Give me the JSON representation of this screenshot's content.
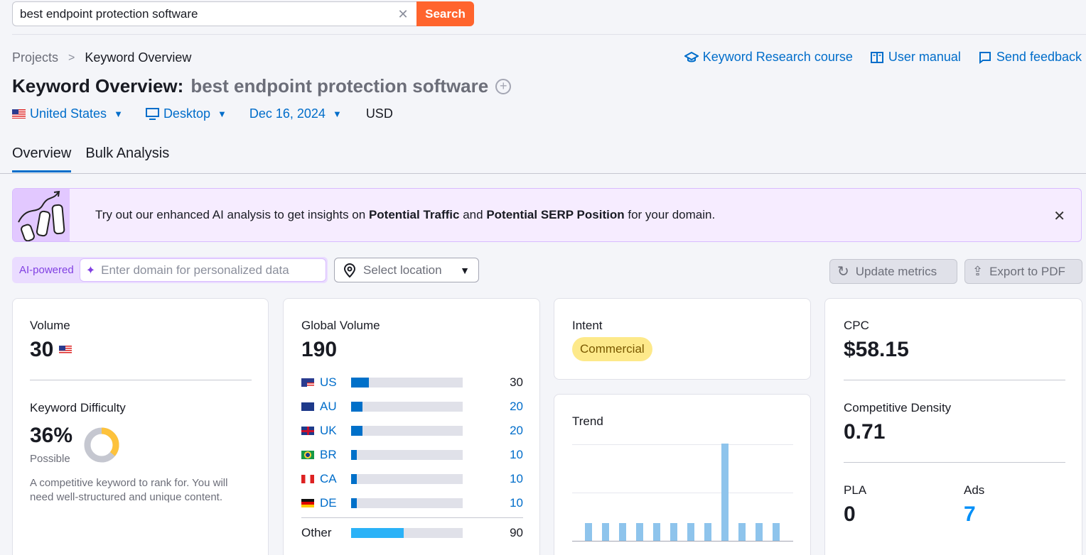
{
  "search": {
    "value": "best endpoint protection software",
    "button_label": "Search"
  },
  "breadcrumb": {
    "projects": "Projects",
    "current": "Keyword Overview"
  },
  "top_links": {
    "course": "Keyword Research course",
    "manual": "User manual",
    "feedback": "Send feedback"
  },
  "title": {
    "prefix": "Keyword Overview:",
    "keyword": "best endpoint protection software"
  },
  "filters": {
    "country": "United States",
    "device": "Desktop",
    "date": "Dec 16, 2024",
    "currency": "USD"
  },
  "tabs": [
    {
      "label": "Overview"
    },
    {
      "label": "Bulk Analysis"
    }
  ],
  "banner": {
    "text_before": "Try out our enhanced AI analysis to get insights on",
    "bold1": "Potential Traffic",
    "text_mid": "and",
    "bold2": "Potential SERP Position",
    "text_after": "for your domain."
  },
  "ai": {
    "label": "AI-powered",
    "placeholder": "Enter domain for personalized data"
  },
  "location": {
    "placeholder": "Select location"
  },
  "actions": {
    "update": "Update metrics",
    "export": "Export to PDF"
  },
  "volume": {
    "label": "Volume",
    "value": "30"
  },
  "difficulty": {
    "label": "Keyword Difficulty",
    "value": "36%",
    "level": "Possible",
    "percent": 36,
    "description": "A competitive keyword to rank for. You will need well-structured and unique content."
  },
  "global_volume": {
    "label": "Global Volume",
    "value": "190",
    "rows": [
      {
        "country": "US",
        "value": "30",
        "fraction": 0.158
      },
      {
        "country": "AU",
        "value": "20",
        "fraction": 0.105
      },
      {
        "country": "UK",
        "value": "20",
        "fraction": 0.105
      },
      {
        "country": "BR",
        "value": "10",
        "fraction": 0.053
      },
      {
        "country": "CA",
        "value": "10",
        "fraction": 0.053
      },
      {
        "country": "DE",
        "value": "10",
        "fraction": 0.053
      }
    ],
    "other": {
      "label": "Other",
      "value": "90",
      "fraction": 0.47
    }
  },
  "intent": {
    "label": "Intent",
    "value": "Commercial"
  },
  "trend": {
    "label": "Trend",
    "values": [
      0.18,
      0.18,
      0.18,
      0.18,
      0.18,
      0.18,
      0.18,
      0.18,
      1.0,
      0.18,
      0.18,
      0.18
    ]
  },
  "cpc": {
    "label": "CPC",
    "value": "$58.15"
  },
  "density": {
    "label": "Competitive Density",
    "value": "0.71"
  },
  "pla": {
    "label": "PLA",
    "value": "0"
  },
  "ads": {
    "label": "Ads",
    "value": "7"
  },
  "colors": {
    "accent": "#006dca",
    "search": "#ff642d",
    "intent_bg": "#fde98a",
    "kd_fill": "#fdc23c"
  }
}
